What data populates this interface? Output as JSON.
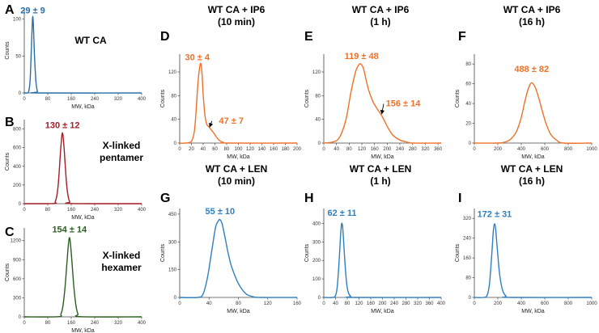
{
  "figure": {
    "description_labels": {
      "xlabel": "MW, kDa",
      "ylabel": "Counts"
    }
  },
  "chart_data": [
    {
      "id": "A",
      "letter": "A",
      "type": "line",
      "title": [],
      "side_label": [
        "WT CA"
      ],
      "xlabel": "MW, kDa",
      "ylabel": "Counts",
      "color": "#2a6ea6",
      "xlim": [
        0,
        400
      ],
      "ylim": [
        0,
        115
      ],
      "xticks": [
        0,
        80,
        160,
        240,
        320,
        400
      ],
      "yticks": [
        0,
        50,
        100
      ],
      "x": [
        0,
        5,
        10,
        15,
        20,
        25,
        27,
        29,
        31,
        33,
        35,
        40,
        45,
        50,
        400
      ],
      "y": [
        0,
        0,
        0,
        2,
        18,
        70,
        92,
        104,
        92,
        70,
        48,
        14,
        2,
        0,
        0
      ],
      "annotations": [
        {
          "text": "29 ± 9",
          "x": 29,
          "y": 108
        }
      ]
    },
    {
      "id": "B",
      "letter": "B",
      "type": "line",
      "title": [],
      "side_label": [
        "X-linked",
        "pentamer"
      ],
      "xlabel": "MW, kDa",
      "ylabel": "Counts",
      "color": "#a41c24",
      "xlim": [
        0,
        400
      ],
      "ylim": [
        0,
        900
      ],
      "xticks": [
        0,
        80,
        160,
        240,
        320,
        400
      ],
      "yticks": [
        0,
        200,
        400,
        600,
        800
      ],
      "x": [
        0,
        100,
        105,
        110,
        115,
        120,
        125,
        130,
        135,
        140,
        145,
        150,
        155,
        160,
        400
      ],
      "y": [
        0,
        2,
        18,
        70,
        180,
        390,
        620,
        760,
        620,
        390,
        180,
        70,
        18,
        2,
        0
      ],
      "annotations": [
        {
          "text": "130 ± 12",
          "x": 130,
          "y": 810
        }
      ]
    },
    {
      "id": "C",
      "letter": "C",
      "type": "line",
      "title": [],
      "side_label": [
        "X-linked",
        "hexamer"
      ],
      "xlabel": "MW, kDa",
      "ylabel": "Counts",
      "color": "#2c5e1f",
      "xlim": [
        0,
        400
      ],
      "ylim": [
        0,
        1400
      ],
      "xticks": [
        0,
        80,
        160,
        240,
        320,
        400
      ],
      "yticks": [
        0,
        300,
        600,
        900,
        1200
      ],
      "x": [
        0,
        115,
        125,
        132,
        139,
        145,
        150,
        154,
        158,
        163,
        169,
        176,
        183,
        193,
        400
      ],
      "y": [
        0,
        2,
        45,
        180,
        470,
        830,
        1120,
        1250,
        1120,
        830,
        470,
        180,
        45,
        2,
        0
      ],
      "annotations": [
        {
          "text": "154 ± 14",
          "x": 154,
          "y": 1330
        }
      ]
    },
    {
      "id": "D",
      "letter": "D",
      "type": "line",
      "title": [
        "WT CA + IP6",
        "(10 min)"
      ],
      "side_label": [],
      "xlabel": "MW, kDa",
      "ylabel": "Counts",
      "color": "#ef7128",
      "xlim": [
        0,
        200
      ],
      "ylim": [
        0,
        150
      ],
      "xticks": [
        0,
        20,
        40,
        60,
        80,
        100,
        120,
        140,
        160,
        180,
        200
      ],
      "yticks": [
        0,
        40,
        80,
        120
      ],
      "x": [
        0,
        10,
        20,
        25,
        28,
        31,
        34,
        36,
        38,
        40,
        43,
        46,
        50,
        54,
        58,
        62,
        66,
        70,
        75,
        80,
        200
      ],
      "y": [
        0,
        0,
        3,
        20,
        55,
        100,
        128,
        134,
        118,
        82,
        47,
        32,
        27,
        22,
        17,
        11,
        6,
        3,
        1,
        0,
        0
      ],
      "annotations": [
        {
          "text": "30 ± 4",
          "x": 30,
          "y": 140
        },
        {
          "text": "47 ± 7",
          "x": 47,
          "y": 26,
          "label_at": [
            88,
            33
          ]
        }
      ]
    },
    {
      "id": "E",
      "letter": "E",
      "type": "line",
      "title": [
        "WT CA + IP6",
        "(1 h)"
      ],
      "side_label": [],
      "xlabel": "MW, kDa",
      "ylabel": "Counts",
      "color": "#ef7128",
      "xlim": [
        0,
        370
      ],
      "ylim": [
        0,
        150
      ],
      "xticks": [
        0,
        40,
        80,
        120,
        160,
        200,
        240,
        280,
        320,
        360
      ],
      "yticks": [
        0,
        40,
        80,
        120
      ],
      "x": [
        0,
        30,
        50,
        70,
        85,
        100,
        112,
        119,
        126,
        140,
        155,
        168,
        185,
        200,
        215,
        230,
        245,
        260,
        280,
        370
      ],
      "y": [
        0,
        2,
        10,
        40,
        84,
        120,
        133,
        132,
        124,
        92,
        70,
        58,
        44,
        28,
        15,
        8,
        4,
        2,
        0,
        0
      ],
      "annotations": [
        {
          "text": "119 ± 48",
          "x": 119,
          "y": 142
        },
        {
          "text": "156 ± 14",
          "x": 175,
          "y": 48,
          "label_at": [
            250,
            62
          ]
        }
      ]
    },
    {
      "id": "F",
      "letter": "F",
      "type": "line",
      "title": [
        "WT CA + IP6",
        "(16 h)"
      ],
      "side_label": [],
      "xlabel": "MW, kDa",
      "ylabel": "Counts",
      "color": "#ef7128",
      "xlim": [
        0,
        1000
      ],
      "ylim": [
        0,
        90
      ],
      "xticks": [
        0,
        200,
        400,
        600,
        800,
        1000
      ],
      "yticks": [
        0,
        20,
        40,
        60,
        80
      ],
      "x": [
        0,
        200,
        260,
        310,
        360,
        400,
        430,
        460,
        488,
        520,
        550,
        580,
        610,
        650,
        700,
        760,
        1000
      ],
      "y": [
        0,
        0,
        1,
        4,
        12,
        26,
        42,
        55,
        61,
        56,
        45,
        32,
        20,
        9,
        3,
        0,
        0
      ],
      "annotations": [
        {
          "text": "488 ± 82",
          "x": 488,
          "y": 72
        }
      ]
    },
    {
      "id": "G",
      "letter": "G",
      "type": "line",
      "title": [
        "WT CA + LEN",
        "(10 min)"
      ],
      "side_label": [],
      "xlabel": "MW, kDa",
      "ylabel": "Counts",
      "color": "#2f7fc1",
      "xlim": [
        0,
        160
      ],
      "ylim": [
        0,
        480
      ],
      "xticks": [
        0,
        40,
        80,
        120,
        160
      ],
      "yticks": [
        0,
        150,
        300,
        450
      ],
      "x": [
        0,
        25,
        32,
        38,
        44,
        49,
        53,
        55,
        58,
        62,
        66,
        70,
        75,
        80,
        86,
        92,
        100,
        110,
        160
      ],
      "y": [
        0,
        0,
        20,
        110,
        260,
        380,
        415,
        420,
        395,
        320,
        240,
        175,
        120,
        75,
        38,
        15,
        4,
        0,
        0
      ],
      "annotations": [
        {
          "text": "55 ± 10",
          "x": 55,
          "y": 450
        }
      ]
    },
    {
      "id": "H",
      "letter": "H",
      "type": "line",
      "title": [
        "WT CA + LEN",
        "(1 h)"
      ],
      "side_label": [],
      "xlabel": "MW, kDa",
      "ylabel": "Counts",
      "color": "#2f7fc1",
      "xlim": [
        0,
        400
      ],
      "ylim": [
        0,
        480
      ],
      "xticks": [
        0,
        40,
        80,
        120,
        160,
        200,
        240,
        280,
        320,
        360,
        400
      ],
      "yticks": [
        0,
        100,
        200,
        300,
        400
      ],
      "x": [
        0,
        30,
        40,
        46,
        52,
        57,
        60,
        62,
        64,
        67,
        72,
        78,
        84,
        92,
        100,
        400
      ],
      "y": [
        0,
        0,
        10,
        60,
        190,
        330,
        390,
        400,
        385,
        320,
        190,
        75,
        25,
        5,
        0,
        0
      ],
      "annotations": [
        {
          "text": "62 ± 11",
          "x": 62,
          "y": 440
        }
      ]
    },
    {
      "id": "I",
      "letter": "I",
      "type": "line",
      "title": [
        "WT CA + LEN",
        "(16 h)"
      ],
      "side_label": [],
      "xlabel": "MW, kDa",
      "ylabel": "Counts",
      "color": "#2f7fc1",
      "xlim": [
        0,
        1000
      ],
      "ylim": [
        0,
        360
      ],
      "xticks": [
        0,
        200,
        400,
        600,
        800,
        1000
      ],
      "yticks": [
        0,
        80,
        160,
        240,
        320
      ],
      "x": [
        0,
        80,
        110,
        130,
        150,
        162,
        172,
        182,
        195,
        215,
        240,
        270,
        300,
        1000
      ],
      "y": [
        0,
        0,
        10,
        60,
        185,
        270,
        298,
        275,
        200,
        95,
        30,
        5,
        0,
        0
      ],
      "annotations": [
        {
          "text": "172 ± 31",
          "x": 172,
          "y": 325
        }
      ]
    }
  ]
}
